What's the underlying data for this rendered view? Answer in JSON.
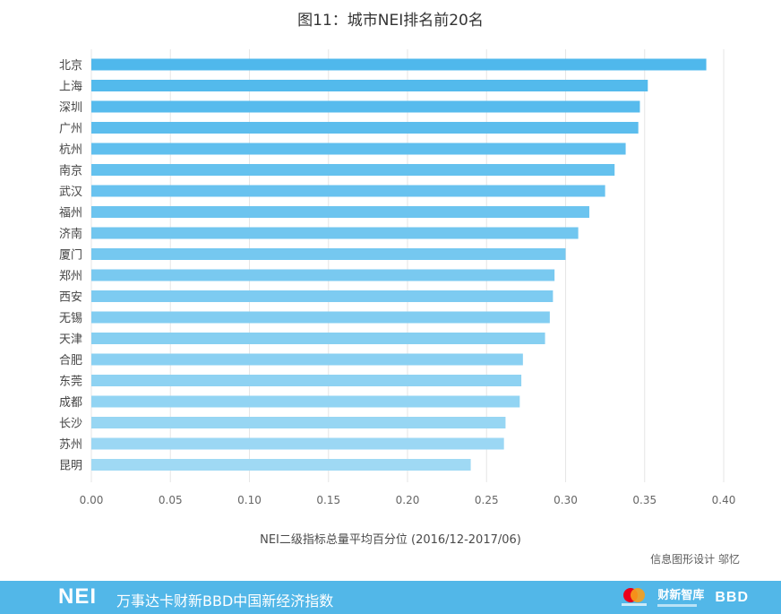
{
  "chart_data": {
    "type": "bar",
    "orientation": "horizontal",
    "title": "图11：城市NEI排名前20名",
    "xlabel": "NEI二级指标总量平均百分位 (2016/12-2017/06)",
    "ylabel": "",
    "xlim": [
      0,
      0.4
    ],
    "xticks": [
      "0.00",
      "0.05",
      "0.10",
      "0.15",
      "0.20",
      "0.25",
      "0.30",
      "0.35",
      "0.40"
    ],
    "grid": "vertical",
    "categories": [
      "北京",
      "上海",
      "深圳",
      "广州",
      "杭州",
      "南京",
      "武汉",
      "福州",
      "济南",
      "厦门",
      "郑州",
      "西安",
      "无锡",
      "天津",
      "合肥",
      "东莞",
      "成都",
      "长沙",
      "苏州",
      "昆明"
    ],
    "values": [
      0.389,
      0.352,
      0.347,
      0.346,
      0.338,
      0.331,
      0.325,
      0.315,
      0.308,
      0.3,
      0.293,
      0.292,
      0.29,
      0.287,
      0.273,
      0.272,
      0.271,
      0.262,
      0.261,
      0.24
    ],
    "colors": {
      "bar_start": "#4fb8ec",
      "bar_end": "#9fd9f4",
      "grid": "#e6e6e6"
    }
  },
  "credit": "信息图形设计 邬忆",
  "footer": {
    "brand": "NEI",
    "tagline": "万事达卡财新BBD中国新经济指数",
    "partner_caixin": "财新智库",
    "partner_bbd": "BBD",
    "background": "#52b7e8"
  }
}
